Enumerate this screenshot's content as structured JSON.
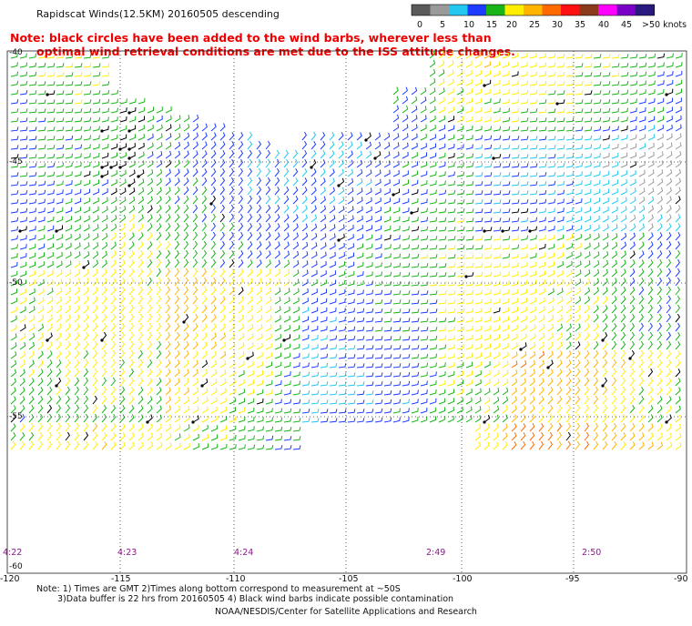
{
  "header": {
    "title": "Rapidscat Winds(12.5KM) 20160505 descending",
    "note_line1": "Note: black circles have been added to the wind barbs, wherever less than",
    "note_line2": "optimal wind retrieval conditions are met due to the ISS attitude changes."
  },
  "legend": {
    "labels": [
      "0",
      "5",
      "10",
      "15",
      "20",
      "25",
      "30",
      "35",
      "40",
      "45",
      ">50 knots"
    ],
    "colors": [
      "#5a5a5a",
      "#9a9a9a",
      "#22c8f0",
      "#1e3cff",
      "#18b418",
      "#ffee00",
      "#ffb400",
      "#ff6a00",
      "#ff1010",
      "#8a3a1a",
      "#ff00ff",
      "#7a00c8",
      "#2a1a80"
    ]
  },
  "map": {
    "lat_labels": [
      "-40",
      "-45",
      "-50",
      "-55",
      "-60"
    ],
    "lon_labels": [
      "-120",
      "-115",
      "-110",
      "-105",
      "-100",
      "-95",
      "-90"
    ],
    "pass_times": [
      "4:22",
      "4:23",
      "4:24",
      "2:49",
      "2:50"
    ],
    "pass_time_color": "#8a1a8a",
    "grid_color": "#333333"
  },
  "footer": {
    "line1": "Note: 1) Times are GMT 2)Times along bottom correspond to measurement at ~50S",
    "line2": "3)Data buffer is 22 hrs from 20160505 4) Black wind barbs indicate possible contamination",
    "credit": "NOAA/NESDIS/Center for Satellite Applications and Research"
  }
}
